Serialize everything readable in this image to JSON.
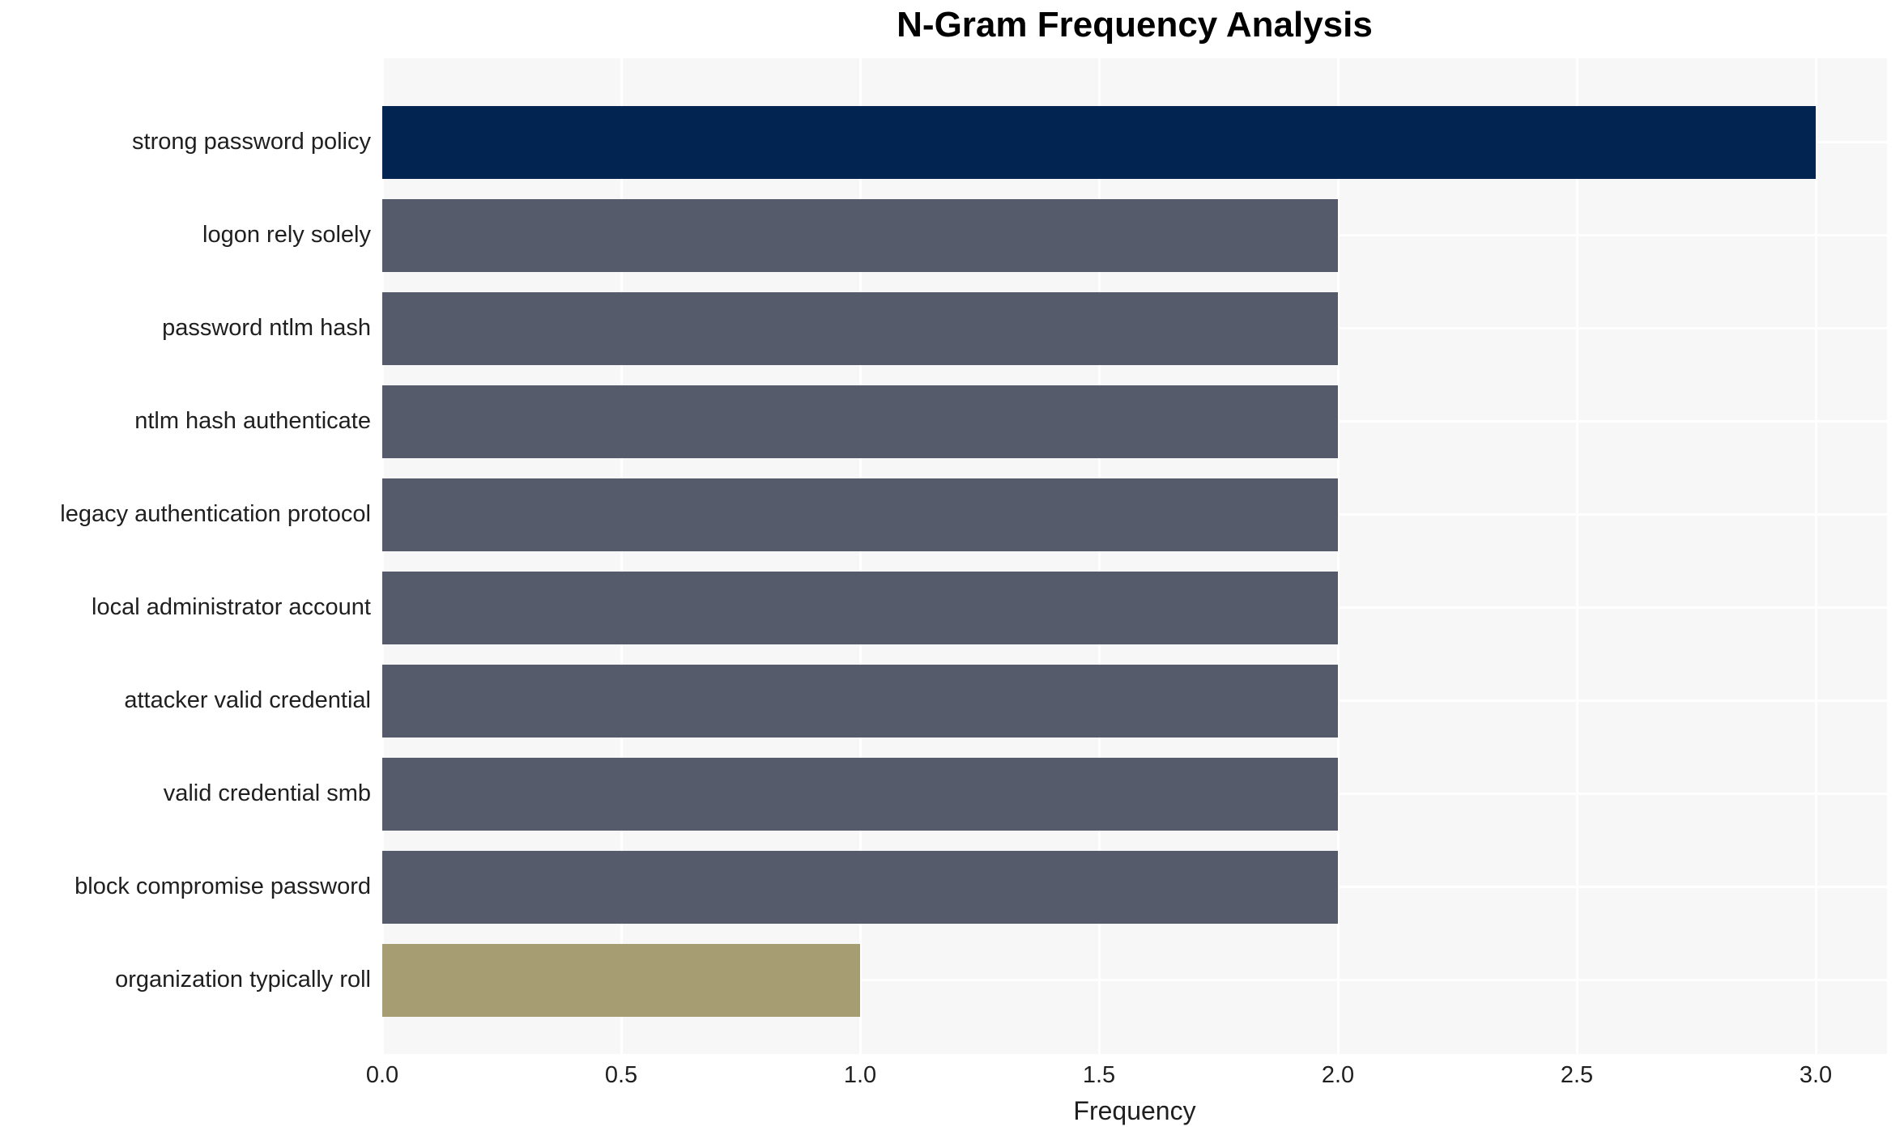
{
  "chart_data": {
    "type": "bar",
    "orientation": "horizontal",
    "title": "N-Gram Frequency Analysis",
    "xlabel": "Frequency",
    "ylabel": "",
    "categories": [
      "strong password policy",
      "logon rely solely",
      "password ntlm hash",
      "ntlm hash authenticate",
      "legacy authentication protocol",
      "local administrator account",
      "attacker valid credential",
      "valid credential smb",
      "block compromise password",
      "organization typically roll"
    ],
    "values": [
      3,
      2,
      2,
      2,
      2,
      2,
      2,
      2,
      2,
      1
    ],
    "bar_colors": [
      "#022450",
      "#565B6B",
      "#565B6B",
      "#565B6B",
      "#565B6B",
      "#565B6B",
      "#565B6B",
      "#565B6B",
      "#565B6B",
      "#A69D72"
    ],
    "xticks": [
      0.0,
      0.5,
      1.0,
      1.5,
      2.0,
      2.5,
      3.0
    ],
    "xtick_labels": [
      "0.0",
      "0.5",
      "1.0",
      "1.5",
      "2.0",
      "2.5",
      "3.0"
    ],
    "xlim": [
      0,
      3.15
    ],
    "grid": {
      "vertical": true,
      "horizontal": true,
      "color": "#FFFFFF"
    },
    "legend_position": "none",
    "colors": {
      "highlight_bar": "#022450",
      "default_bar": "#565B6B",
      "lowest_bar": "#A69D72",
      "panel_background": "#F7F7F7",
      "page_background": "#FFFFFF",
      "gridline": "#FFFFFF",
      "text": "#1F1F1F",
      "title_text": "#000000"
    }
  }
}
